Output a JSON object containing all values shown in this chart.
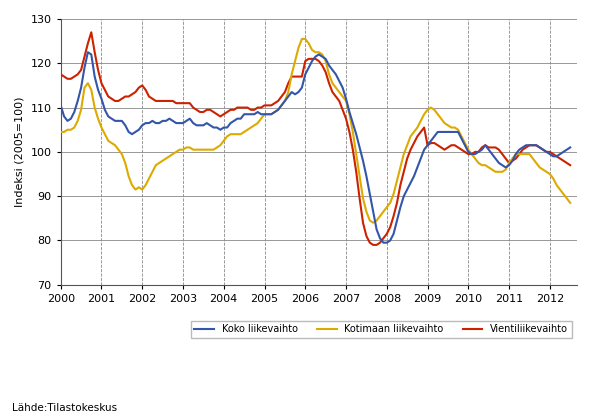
{
  "title": "",
  "ylabel": "Indeksi (2005=100)",
  "source_text": "Lähde:Tilastokeskus",
  "ylim": [
    70,
    130
  ],
  "yticks": [
    70,
    80,
    90,
    100,
    110,
    120,
    130
  ],
  "colors": {
    "koko": "#3355AA",
    "kotimaan": "#DDAA00",
    "vienti": "#CC2200"
  },
  "legend": {
    "koko": "Koko liikevaihto",
    "kotimaan": "Kotimaan liikevaihto",
    "vienti": "Vientiliikevaihto"
  },
  "koko": [
    110.5,
    108.0,
    107.0,
    107.5,
    109.0,
    111.5,
    114.5,
    119.0,
    122.5,
    122.0,
    117.0,
    114.0,
    112.0,
    109.5,
    108.0,
    107.5,
    107.0,
    107.0,
    107.0,
    106.0,
    104.5,
    104.0,
    104.5,
    105.0,
    106.0,
    106.5,
    106.5,
    107.0,
    106.5,
    106.5,
    107.0,
    107.0,
    107.5,
    107.0,
    106.5,
    106.5,
    106.5,
    107.0,
    107.5,
    106.5,
    106.0,
    106.0,
    106.0,
    106.5,
    106.0,
    105.5,
    105.5,
    105.0,
    105.5,
    105.5,
    106.5,
    107.0,
    107.5,
    107.5,
    108.5,
    108.5,
    108.5,
    108.5,
    109.0,
    108.5,
    108.5,
    108.5,
    108.5,
    109.0,
    109.5,
    110.5,
    111.5,
    112.5,
    113.5,
    113.0,
    113.5,
    114.5,
    117.5,
    119.0,
    120.5,
    121.5,
    122.0,
    121.5,
    121.0,
    119.5,
    118.5,
    117.5,
    116.0,
    114.5,
    112.0,
    109.0,
    106.5,
    104.0,
    101.0,
    98.0,
    94.5,
    90.5,
    86.5,
    82.5,
    80.5,
    79.5,
    79.5,
    80.0,
    81.5,
    84.5,
    87.5,
    90.0,
    91.5,
    93.0,
    94.5,
    96.5,
    98.5,
    100.5,
    101.5,
    102.5,
    103.5,
    104.5,
    104.5,
    104.5,
    104.5,
    104.5,
    104.5,
    104.5,
    103.0,
    101.5,
    100.0,
    99.5,
    99.5,
    100.0,
    100.5,
    101.5,
    100.5,
    99.5,
    98.5,
    97.5,
    97.0,
    96.5,
    97.0,
    98.0,
    99.5,
    100.5,
    101.0,
    101.5,
    101.5,
    101.5,
    101.5,
    101.0,
    100.5,
    100.0,
    99.5,
    99.0,
    99.0,
    99.5,
    100.0,
    100.5,
    101.0
  ],
  "kotimaan": [
    104.5,
    104.5,
    105.0,
    105.0,
    105.5,
    107.0,
    109.5,
    114.5,
    115.5,
    114.0,
    110.0,
    107.5,
    105.5,
    104.0,
    102.5,
    102.0,
    101.5,
    100.5,
    99.5,
    97.5,
    94.5,
    92.5,
    91.5,
    92.0,
    91.5,
    92.5,
    94.0,
    95.5,
    97.0,
    97.5,
    98.0,
    98.5,
    99.0,
    99.5,
    100.0,
    100.5,
    100.5,
    101.0,
    101.0,
    100.5,
    100.5,
    100.5,
    100.5,
    100.5,
    100.5,
    100.5,
    101.0,
    101.5,
    102.5,
    103.5,
    104.0,
    104.0,
    104.0,
    104.0,
    104.5,
    105.0,
    105.5,
    106.0,
    106.5,
    107.5,
    108.5,
    108.5,
    108.5,
    109.0,
    109.5,
    110.5,
    111.5,
    113.5,
    117.5,
    120.5,
    123.5,
    125.5,
    125.5,
    124.5,
    123.0,
    122.5,
    122.5,
    122.0,
    120.5,
    117.5,
    115.5,
    114.5,
    113.5,
    112.5,
    111.5,
    108.5,
    104.5,
    99.5,
    94.5,
    89.5,
    86.5,
    84.5,
    84.0,
    84.5,
    85.5,
    86.5,
    87.5,
    88.5,
    90.5,
    93.5,
    96.5,
    99.5,
    101.5,
    103.5,
    104.5,
    105.5,
    107.0,
    108.5,
    109.5,
    110.0,
    109.5,
    108.5,
    107.5,
    106.5,
    106.0,
    105.5,
    105.5,
    105.0,
    103.5,
    102.0,
    100.5,
    99.5,
    98.5,
    97.5,
    97.0,
    97.0,
    96.5,
    96.0,
    95.5,
    95.5,
    95.5,
    96.0,
    97.5,
    98.5,
    99.5,
    99.5,
    99.5,
    99.5,
    99.5,
    98.5,
    97.5,
    96.5,
    96.0,
    95.5,
    95.0,
    94.0,
    92.5,
    91.5,
    90.5,
    89.5,
    88.5
  ],
  "vienti": [
    117.5,
    117.0,
    116.5,
    116.5,
    117.0,
    117.5,
    118.5,
    121.5,
    124.5,
    127.0,
    122.5,
    118.5,
    115.5,
    114.0,
    112.5,
    112.0,
    111.5,
    111.5,
    112.0,
    112.5,
    112.5,
    113.0,
    113.5,
    114.5,
    115.0,
    114.0,
    112.5,
    112.0,
    111.5,
    111.5,
    111.5,
    111.5,
    111.5,
    111.5,
    111.0,
    111.0,
    111.0,
    111.0,
    111.0,
    110.0,
    109.5,
    109.0,
    109.0,
    109.5,
    109.5,
    109.0,
    108.5,
    108.0,
    108.5,
    109.0,
    109.5,
    109.5,
    110.0,
    110.0,
    110.0,
    110.0,
    109.5,
    109.5,
    110.0,
    110.0,
    110.5,
    110.5,
    110.5,
    111.0,
    111.5,
    112.5,
    113.5,
    115.5,
    117.0,
    117.0,
    117.0,
    117.0,
    120.5,
    121.0,
    121.0,
    121.0,
    120.5,
    119.5,
    118.0,
    115.5,
    113.5,
    112.5,
    111.5,
    109.5,
    107.5,
    104.5,
    100.5,
    95.5,
    89.5,
    84.0,
    81.0,
    79.5,
    79.0,
    79.0,
    79.5,
    80.5,
    81.5,
    83.0,
    85.5,
    88.5,
    92.5,
    95.5,
    98.5,
    100.5,
    102.0,
    103.5,
    104.5,
    105.5,
    101.5,
    102.0,
    102.0,
    101.5,
    101.0,
    100.5,
    101.0,
    101.5,
    101.5,
    101.0,
    100.5,
    100.0,
    99.5,
    99.5,
    100.0,
    100.0,
    101.0,
    101.5,
    101.0,
    101.0,
    101.0,
    100.5,
    99.5,
    98.5,
    97.5,
    98.0,
    98.5,
    99.5,
    100.5,
    101.0,
    101.5,
    101.5,
    101.5,
    101.0,
    100.5,
    100.0,
    100.0,
    99.5,
    99.0,
    98.5,
    98.0,
    97.5,
    97.0
  ],
  "xtick_years": [
    2000,
    2001,
    2002,
    2003,
    2004,
    2005,
    2006,
    2007,
    2008,
    2009,
    2010,
    2011,
    2012
  ],
  "grid_color": "#888888",
  "line_width": 1.5,
  "background_color": "#ffffff"
}
